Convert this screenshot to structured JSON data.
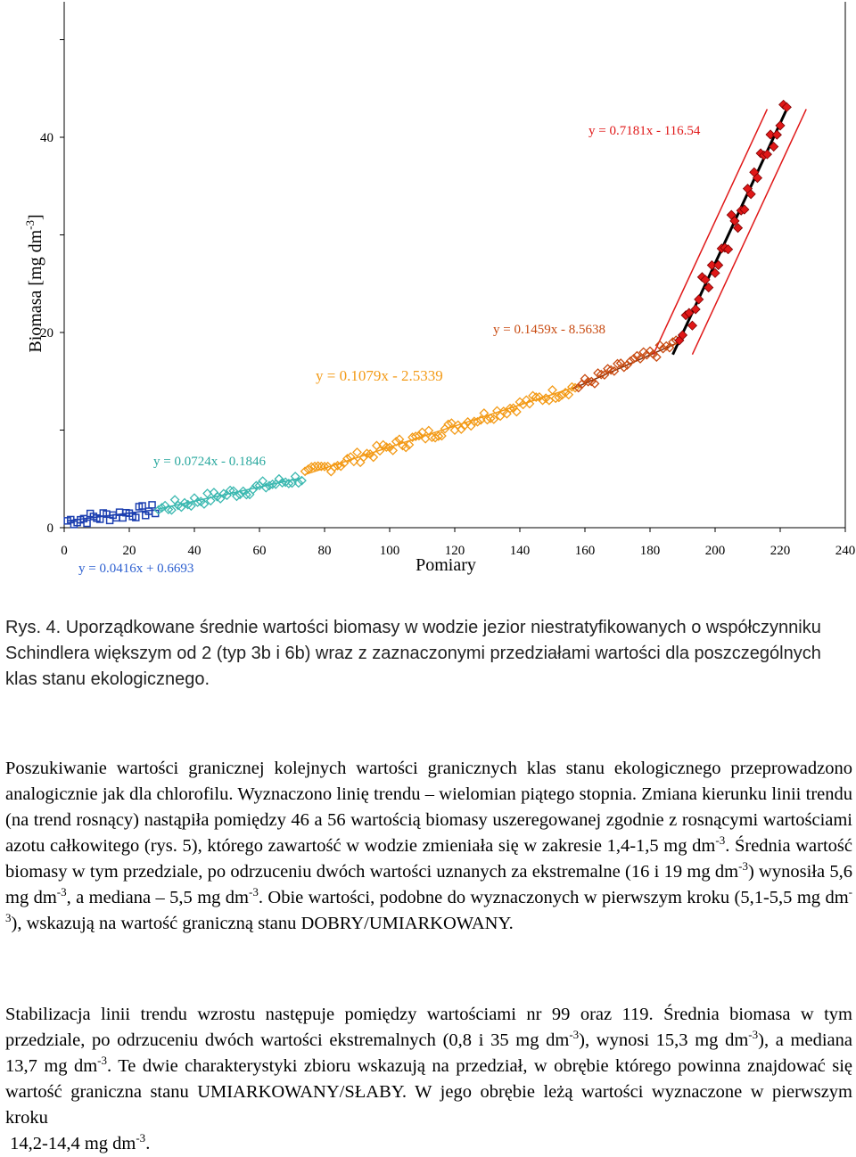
{
  "chart_data": {
    "type": "scatter",
    "xlabel": "Pomiary",
    "ylabel": "Biomasa [mg dm",
    "ylabel_sup": "-3",
    "ylabel_end": "]",
    "xlim": [
      0,
      240
    ],
    "ylim": [
      0,
      50
    ],
    "x_ticks": [
      0,
      20,
      40,
      60,
      80,
      100,
      120,
      140,
      160,
      180,
      200,
      220,
      240
    ],
    "x_tick_labels": [
      "0",
      "20",
      "40",
      "60",
      "80",
      "100",
      "120",
      "140",
      "160",
      "180",
      "200",
      "220",
      "240"
    ],
    "y_ticks": [
      0,
      20,
      40
    ],
    "y_tick_labels": [
      "0",
      "20",
      "40"
    ],
    "y_minor_ticks": [
      10,
      30,
      50
    ],
    "series": [
      {
        "color": "#1c3fb0",
        "marker": "square",
        "x_range": [
          1,
          28
        ],
        "slope": 0.0416,
        "intercept": 0.6693,
        "equation": "y = 0.0416x + 0.6693"
      },
      {
        "color": "#3bb8b0",
        "marker": "diamond",
        "x_range": [
          29,
          73
        ],
        "slope": 0.0724,
        "intercept": -0.1846,
        "equation": "y = 0.0724x - 0.1846"
      },
      {
        "color": "#f39a16",
        "marker": "diamond",
        "x_range": [
          74,
          157
        ],
        "slope": 0.1079,
        "intercept": -2.5339,
        "equation": "y = 0.1079x - 2.5339"
      },
      {
        "color": "#c84a10",
        "marker": "diamond",
        "x_range": [
          158,
          188
        ],
        "slope": 0.1459,
        "intercept": -8.5638,
        "equation": "y = 0.1459x - 8.5638"
      },
      {
        "color": "#e01818",
        "marker": "diamond",
        "x_range": [
          189,
          222
        ],
        "slope": 0.7181,
        "intercept": -116.54,
        "equation": "y = 0.7181x - 116.54"
      }
    ]
  },
  "caption": "Rys. 4. Uporządkowane średnie wartości biomasy  w wodzie jezior niestratyfikowanych o współczynniku Schindlera większym od 2 (typ 3b i 6b) wraz z zaznaczonymi przedziałami wartości dla poszczególnych klas stanu ekologicznego.",
  "p1": {
    "a": "Poszukiwanie wartości granicznej kolejnych wartości granicznych klas stanu ekologicznego przeprowadzono analogicznie jak dla chlorofilu. Wyznaczono linię trendu – wielomian piątego stopnia. Zmiana kierunku linii trendu (na trend rosnący) nastąpiła pomiędzy 46 a 56 wartością biomasy uszeregowanej zgodnie z rosnącymi wartościami azotu całkowitego (rys. 5), którego zawartość w wodzie zmieniała się w zakresie 1,4-1,5 mg dm",
    "sup1": "-3",
    "b": ". Średnia wartość biomasy w tym przedziale, po odrzuceniu dwóch wartości uznanych za ekstremalne (16 i 19 mg dm",
    "sup2": "-3",
    "c": ") wynosiła 5,6 mg dm",
    "sup3": "-3",
    "d": ", a mediana – 5,5 mg dm",
    "sup4": "-3",
    "e": ". Obie wartości, podobne do wyznaczonych w pierwszym kroku (5,1-5,5 mg dm",
    "sup5": "-3",
    "f": "), wskazują na wartość graniczną stanu DOBRY/UMIARKOWANY."
  },
  "p2": {
    "a": "Stabilizacja linii trendu wzrostu następuje pomiędzy wartościami nr 99 oraz 119. Średnia biomasa w tym przedziale, po odrzuceniu dwóch wartości ekstremalnych (0,8 i 35 mg dm",
    "sup1": "-3",
    "b": "), wynosi 15,3 mg dm",
    "sup2": "-3",
    "c": "), a mediana 13,7 mg dm",
    "sup3": "-3",
    "d": ". Te dwie charakterystyki zbioru wskazują na przedział, w obrębie którego powinna znajdować się wartość graniczna stanu UMIARKOWANY/SŁABY. W jego obrębie leżą wartości wyznaczone w pierwszym kroku",
    "e": "14,2-14,4 mg dm",
    "sup4": "-3",
    "f": "."
  }
}
